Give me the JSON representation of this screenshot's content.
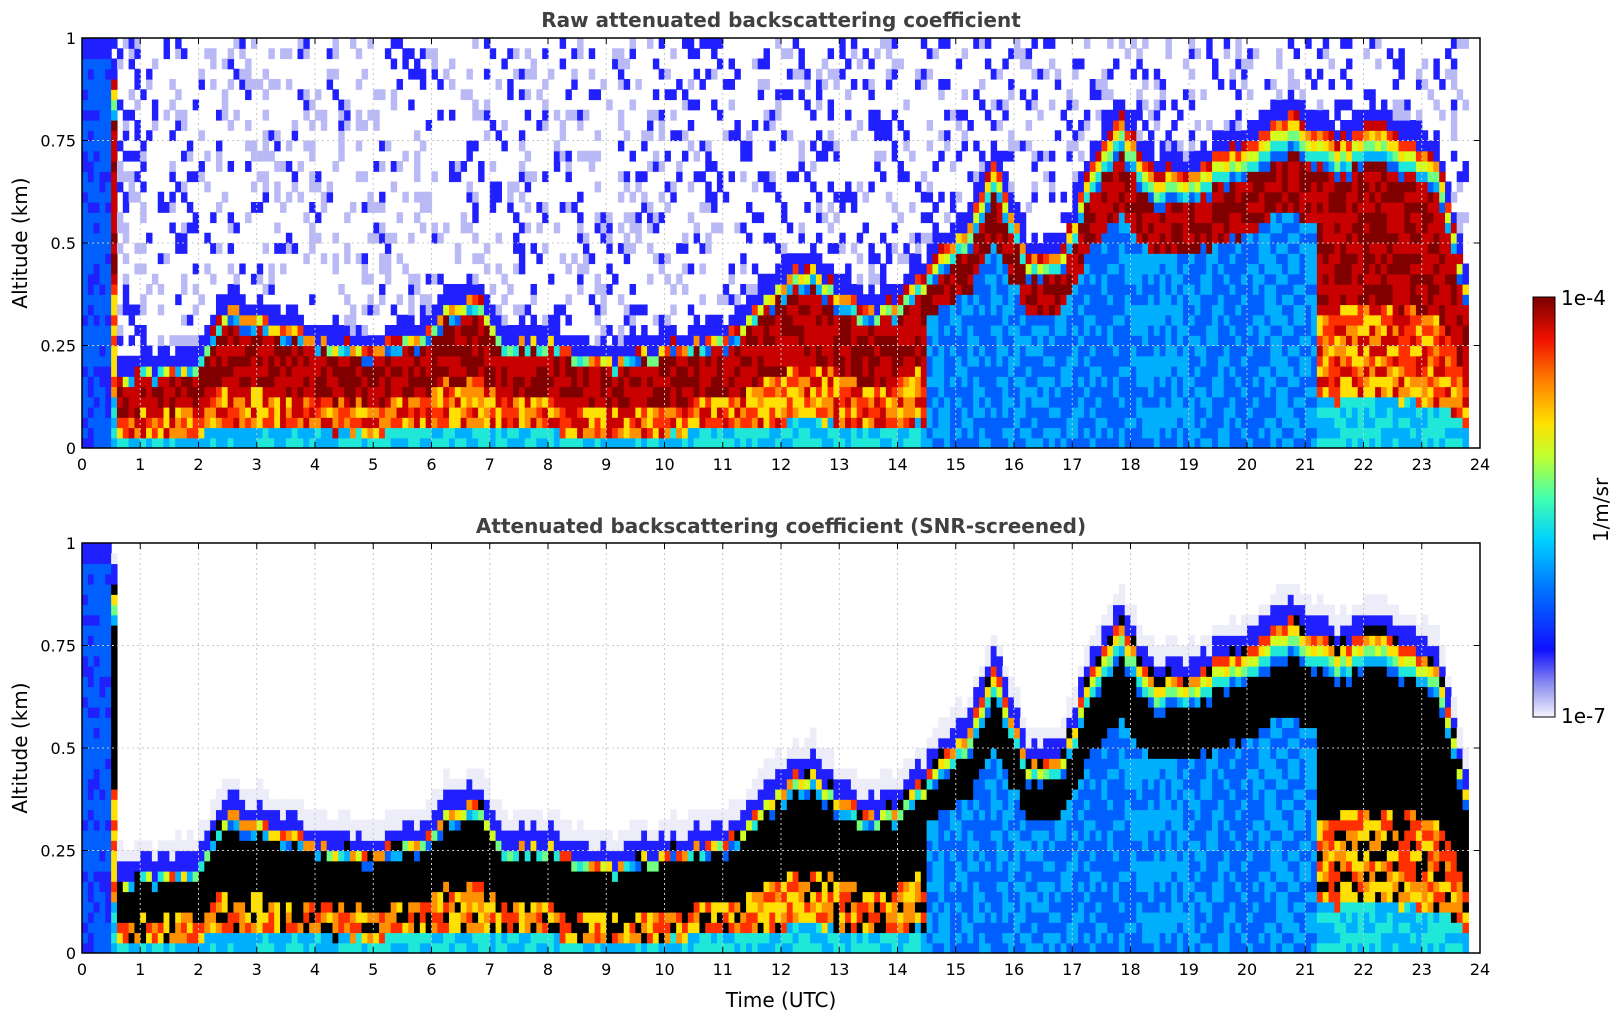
{
  "chart_data": [
    {
      "type": "heatmap",
      "title": "Raw attenuated backscattering coefficient",
      "xlabel": "",
      "ylabel": "Altitude (km)",
      "xlim": [
        0,
        24
      ],
      "ylim": [
        0,
        1
      ],
      "x_ticks": [
        "0",
        "1",
        "2",
        "3",
        "4",
        "5",
        "6",
        "7",
        "8",
        "9",
        "10",
        "11",
        "12",
        "13",
        "14",
        "15",
        "16",
        "17",
        "18",
        "19",
        "20",
        "21",
        "22",
        "23",
        "24"
      ],
      "y_ticks": [
        "0",
        "0.25",
        "0.5",
        "0.75",
        "1"
      ],
      "grid": true,
      "boundary_layer_top_km": {
        "x": [
          0.6,
          1.0,
          1.5,
          2.0,
          2.5,
          3.0,
          3.5,
          4.0,
          5.0,
          5.8,
          6.3,
          6.8,
          7.2,
          8.0,
          9.0,
          10.0,
          11.0,
          11.8,
          12.5,
          13.0,
          13.5,
          14.0,
          14.6,
          15.2,
          15.7,
          16.2,
          16.8,
          17.3,
          17.8,
          18.3,
          19.0,
          19.5,
          20.0,
          20.7,
          21.2,
          21.6,
          22.2,
          22.8,
          23.3,
          23.8
        ],
        "y": [
          0.18,
          0.19,
          0.19,
          0.21,
          0.36,
          0.32,
          0.3,
          0.26,
          0.25,
          0.28,
          0.36,
          0.38,
          0.27,
          0.27,
          0.21,
          0.25,
          0.27,
          0.38,
          0.46,
          0.38,
          0.34,
          0.36,
          0.45,
          0.55,
          0.7,
          0.48,
          0.47,
          0.68,
          0.82,
          0.68,
          0.68,
          0.72,
          0.75,
          0.82,
          0.78,
          0.75,
          0.8,
          0.75,
          0.7,
          0.38
        ]
      }
    },
    {
      "type": "heatmap",
      "title": "Attenuated backscattering coefficient (SNR-screened)",
      "xlabel": "Time (UTC)",
      "ylabel": "Altitude (km)",
      "xlim": [
        0,
        24
      ],
      "ylim": [
        0,
        1
      ],
      "x_ticks": [
        "0",
        "1",
        "2",
        "3",
        "4",
        "5",
        "6",
        "7",
        "8",
        "9",
        "10",
        "11",
        "12",
        "13",
        "14",
        "15",
        "16",
        "17",
        "18",
        "19",
        "20",
        "21",
        "22",
        "23",
        "24"
      ],
      "y_ticks": [
        "0",
        "0.25",
        "0.5",
        "0.75",
        "1"
      ],
      "grid": true
    }
  ],
  "colorbar": {
    "label": "1/m/sr",
    "max_label": "1e-4",
    "min_label": "1e-7",
    "colors": [
      "#ededfa",
      "#b9b9f5",
      "#6a6af0",
      "#2020ff",
      "#0060ff",
      "#00b0ff",
      "#20e8d8",
      "#70ff80",
      "#d0ff20",
      "#ffe000",
      "#ff9000",
      "#ff3000",
      "#c80000",
      "#800000"
    ]
  }
}
